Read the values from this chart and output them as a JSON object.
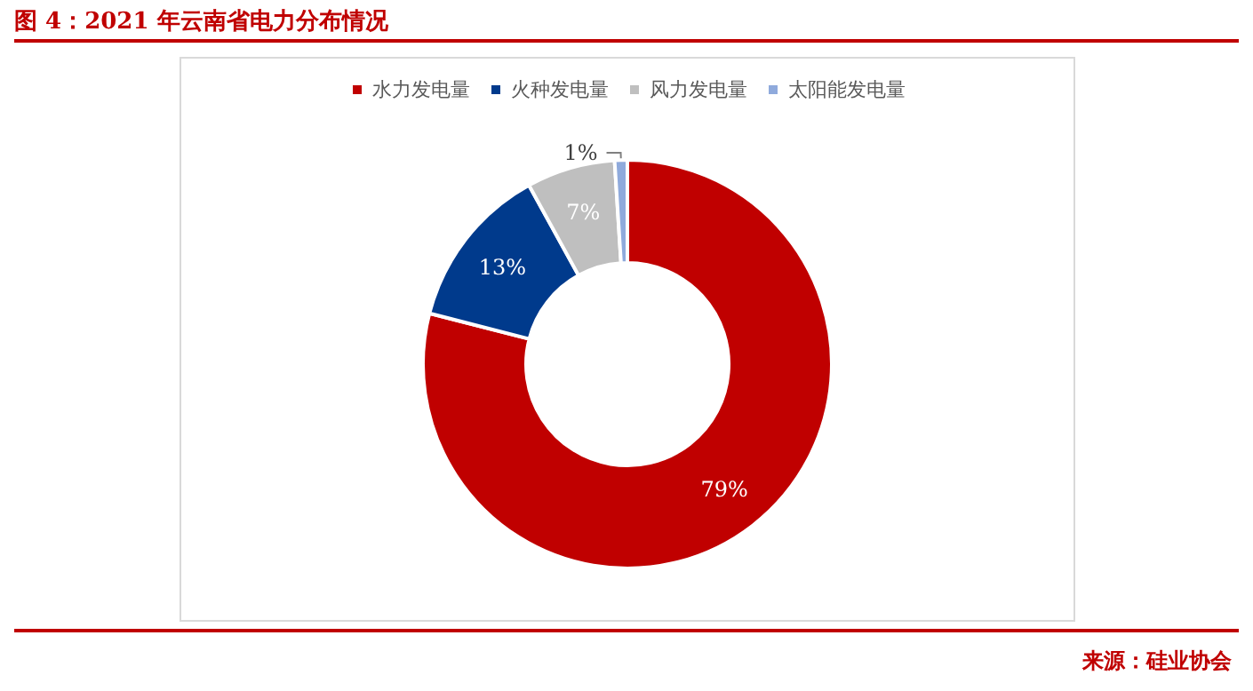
{
  "chart_data": {
    "type": "donut",
    "title": "图 4：2021 年云南省电力分布情况",
    "categories": [
      "水力发电量",
      "火种发电量",
      "风力发电量",
      "太阳能发电量"
    ],
    "values": [
      79,
      13,
      7,
      1
    ],
    "colors": [
      "#c00000",
      "#003a8c",
      "#bfbfbf",
      "#8faadc"
    ],
    "value_labels": [
      "79%",
      "13%",
      "7%",
      "1%"
    ],
    "legend": "top",
    "annotations": [
      "来源：硅业协会"
    ]
  }
}
